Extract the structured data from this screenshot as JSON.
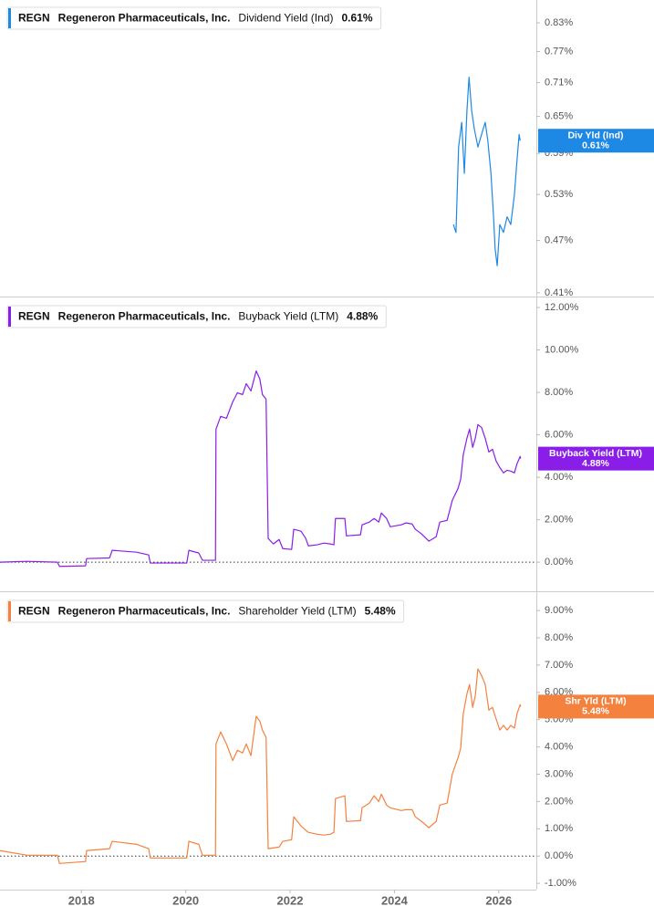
{
  "chart_data": [
    {
      "type": "line",
      "ticker": "REGN",
      "company": "Regeneron Pharmaceuticals, Inc.",
      "log_scale": true,
      "zero_line": false,
      "x": [
        2025.13,
        2025.18,
        2025.23,
        2025.29,
        2025.34,
        2025.39,
        2025.43,
        2025.48,
        2025.53,
        2025.6,
        2025.67,
        2025.74,
        2025.79,
        2025.85,
        2025.9,
        2025.93,
        2025.97,
        2026.02,
        2026.09,
        2026.16,
        2026.23,
        2026.3,
        2026.34,
        2026.39,
        2026.41
      ],
      "series": [
        {
          "name": "Dividend Yield (Ind)",
          "short_name": "Div Yld (Ind)",
          "color": "#1e88e5",
          "last_label": "0.61%",
          "values": [
            0.49,
            0.48,
            0.6,
            0.64,
            0.56,
            0.66,
            0.72,
            0.66,
            0.63,
            0.6,
            0.62,
            0.64,
            0.61,
            0.56,
            0.5,
            0.46,
            0.44,
            0.49,
            0.48,
            0.5,
            0.49,
            0.53,
            0.57,
            0.62,
            0.61
          ]
        }
      ],
      "xlim": [
        2016.44,
        2026.72
      ],
      "ylim": [
        0.406,
        0.881
      ],
      "yticks": [
        {
          "value": 0.83,
          "label": "0.83%"
        },
        {
          "value": 0.77,
          "label": "0.77%"
        },
        {
          "value": 0.71,
          "label": "0.71%"
        },
        {
          "value": 0.65,
          "label": "0.65%"
        },
        {
          "value": 0.59,
          "label": "0.59%"
        },
        {
          "value": 0.53,
          "label": "0.53%"
        },
        {
          "value": 0.47,
          "label": "0.47%"
        },
        {
          "value": 0.41,
          "label": "0.41%"
        }
      ]
    },
    {
      "type": "line",
      "ticker": "REGN",
      "company": "Regeneron Pharmaceuticals, Inc.",
      "log_scale": false,
      "zero_line": true,
      "x": [
        2016.44,
        2016.96,
        2017.54,
        2017.58,
        2018.08,
        2018.1,
        2018.54,
        2018.59,
        2019.06,
        2019.29,
        2019.32,
        2020.02,
        2020.06,
        2020.25,
        2020.32,
        2020.57,
        2020.58,
        2020.67,
        2020.78,
        2020.9,
        2020.99,
        2021.09,
        2021.16,
        2021.25,
        2021.35,
        2021.42,
        2021.47,
        2021.54,
        2021.58,
        2021.68,
        2021.79,
        2021.86,
        2022.03,
        2022.07,
        2022.21,
        2022.3,
        2022.35,
        2022.52,
        2022.65,
        2022.77,
        2022.84,
        2022.87,
        2023.05,
        2023.08,
        2023.35,
        2023.38,
        2023.52,
        2023.61,
        2023.7,
        2023.75,
        2023.85,
        2023.92,
        2024.13,
        2024.22,
        2024.34,
        2024.4,
        2024.52,
        2024.66,
        2024.8,
        2024.87,
        2025.01,
        2025.11,
        2025.22,
        2025.27,
        2025.32,
        2025.39,
        2025.44,
        2025.5,
        2025.55,
        2025.6,
        2025.67,
        2025.74,
        2025.81,
        2025.88,
        2025.95,
        2026.02,
        2026.09,
        2026.16,
        2026.23,
        2026.3,
        2026.35,
        2026.41,
        2026.42
      ],
      "series": [
        {
          "name": "Buyback Yield (LTM)",
          "short_name": "Buyback Yield (LTM)",
          "color": "#8a1ee8",
          "last_label": "4.88%",
          "values": [
            0,
            0.04,
            0,
            -0.2,
            -0.17,
            0.17,
            0.2,
            0.56,
            0.47,
            0.34,
            -0.04,
            -0.04,
            0.56,
            0.43,
            0.09,
            0.09,
            6.27,
            6.87,
            6.78,
            7.55,
            7.98,
            7.9,
            8.41,
            8.07,
            9.01,
            8.63,
            7.9,
            7.68,
            1.12,
            0.86,
            1.07,
            0.64,
            0.6,
            1.55,
            1.46,
            1.12,
            0.77,
            0.82,
            0.9,
            0.86,
            0.82,
            2.06,
            2.06,
            1.24,
            1.29,
            1.76,
            1.89,
            2.06,
            1.89,
            2.32,
            2.06,
            1.67,
            1.76,
            1.85,
            1.8,
            1.55,
            1.33,
            0.99,
            1.2,
            1.89,
            1.97,
            2.92,
            3.48,
            3.91,
            5.06,
            5.84,
            6.27,
            5.41,
            5.84,
            6.48,
            6.35,
            5.84,
            5.19,
            5.32,
            4.76,
            4.46,
            4.21,
            4.33,
            4.29,
            4.21,
            4.64,
            4.98,
            4.88
          ]
        }
      ],
      "xlim": [
        2016.44,
        2026.72
      ],
      "ylim": [
        -1.37,
        12.43
      ],
      "yticks": [
        {
          "value": 12,
          "label": "12.00%"
        },
        {
          "value": 10,
          "label": "10.00%"
        },
        {
          "value": 8,
          "label": "8.00%"
        },
        {
          "value": 6,
          "label": "6.00%"
        },
        {
          "value": 4,
          "label": "4.00%"
        },
        {
          "value": 2,
          "label": "2.00%"
        },
        {
          "value": 0,
          "label": "0.00%"
        }
      ]
    },
    {
      "type": "line",
      "ticker": "REGN",
      "company": "Regeneron Pharmaceuticals, Inc.",
      "log_scale": false,
      "zero_line": true,
      "x": [
        2016.44,
        2016.96,
        2017.54,
        2017.58,
        2018.08,
        2018.1,
        2018.54,
        2018.59,
        2019.06,
        2019.29,
        2019.32,
        2020.02,
        2020.06,
        2020.25,
        2020.32,
        2020.57,
        2020.58,
        2020.67,
        2020.78,
        2020.9,
        2020.99,
        2021.09,
        2021.16,
        2021.25,
        2021.35,
        2021.42,
        2021.47,
        2021.54,
        2021.58,
        2021.68,
        2021.79,
        2021.86,
        2022.03,
        2022.07,
        2022.21,
        2022.3,
        2022.35,
        2022.52,
        2022.65,
        2022.77,
        2022.84,
        2022.87,
        2023.05,
        2023.08,
        2023.35,
        2023.38,
        2023.52,
        2023.61,
        2023.7,
        2023.75,
        2023.85,
        2023.92,
        2024.13,
        2024.22,
        2024.34,
        2024.4,
        2024.52,
        2024.66,
        2024.8,
        2024.87,
        2025.01,
        2025.11,
        2025.22,
        2025.27,
        2025.32,
        2025.39,
        2025.44,
        2025.5,
        2025.55,
        2025.6,
        2025.67,
        2025.74,
        2025.81,
        2025.88,
        2025.95,
        2026.02,
        2026.09,
        2026.16,
        2026.23,
        2026.3,
        2026.35,
        2026.41,
        2026.42
      ],
      "series": [
        {
          "name": "Shareholder Yield (LTM)",
          "short_name": "Shr Yld (LTM)",
          "color": "#f5813f",
          "last_label": "5.48%",
          "values": [
            0.2,
            0.03,
            0.03,
            -0.27,
            -0.2,
            0.2,
            0.27,
            0.54,
            0.43,
            0.27,
            -0.07,
            -0.07,
            0.54,
            0.43,
            0.03,
            0.03,
            4.11,
            4.55,
            4.11,
            3.5,
            3.88,
            3.78,
            4.11,
            3.68,
            5.12,
            4.95,
            4.62,
            4.35,
            0.27,
            0.3,
            0.33,
            0.54,
            0.6,
            1.44,
            1.1,
            0.95,
            0.87,
            0.8,
            0.77,
            0.8,
            0.87,
            2.11,
            2.21,
            1.27,
            1.3,
            1.77,
            1.94,
            2.21,
            2.0,
            2.27,
            1.87,
            1.77,
            1.67,
            1.7,
            1.7,
            1.44,
            1.27,
            1.04,
            1.27,
            1.87,
            1.94,
            3.01,
            3.61,
            3.95,
            5.22,
            5.95,
            6.29,
            5.45,
            5.88,
            6.86,
            6.62,
            6.29,
            5.35,
            5.45,
            5.02,
            4.62,
            4.79,
            4.62,
            4.79,
            4.69,
            5.22,
            5.55,
            5.48
          ]
        }
      ],
      "xlim": [
        2016.44,
        2026.72
      ],
      "ylim": [
        -1.23,
        9.64
      ],
      "yticks": [
        {
          "value": 9,
          "label": "9.00%"
        },
        {
          "value": 8,
          "label": "8.00%"
        },
        {
          "value": 7,
          "label": "7.00%"
        },
        {
          "value": 6,
          "label": "6.00%"
        },
        {
          "value": 5,
          "label": "5.00%"
        },
        {
          "value": 4,
          "label": "4.00%"
        },
        {
          "value": 3,
          "label": "3.00%"
        },
        {
          "value": 2,
          "label": "2.00%"
        },
        {
          "value": 1,
          "label": "1.00%"
        },
        {
          "value": 0,
          "label": "0.00%"
        },
        {
          "value": -1,
          "label": "-1.00%"
        }
      ],
      "xticks": [
        2018,
        2020,
        2022,
        2024,
        2026
      ]
    }
  ]
}
